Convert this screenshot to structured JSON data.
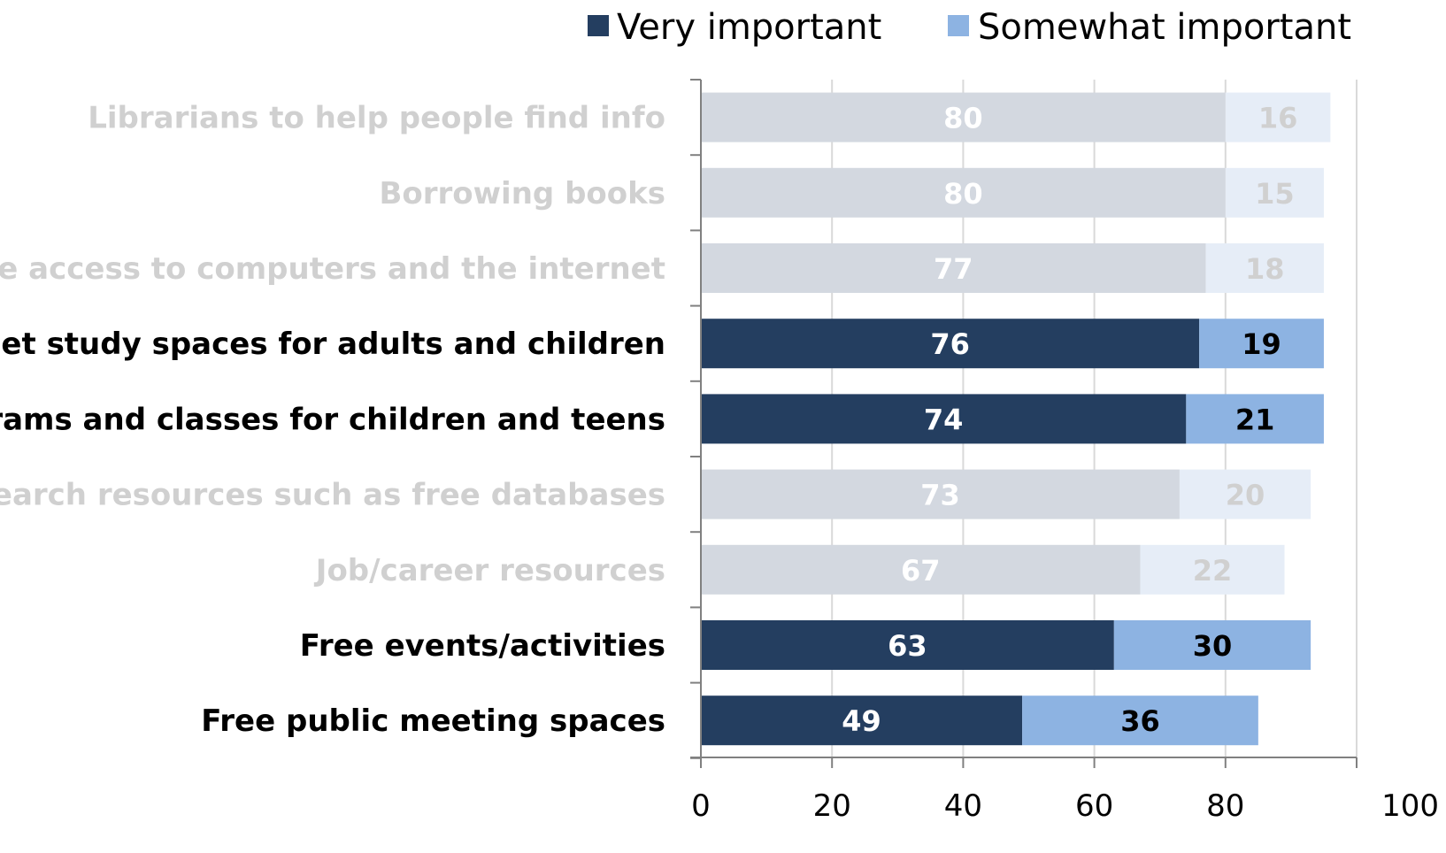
{
  "chart_data": {
    "type": "bar",
    "orientation": "horizontal",
    "stacked": true,
    "title": "",
    "xlabel": "",
    "ylabel": "",
    "xlim": [
      0,
      100
    ],
    "x_ticks": [
      0,
      20,
      40,
      60,
      80,
      100
    ],
    "grid": true,
    "legend_position": "top-right",
    "categories": [
      "Librarians to help people find info",
      "Borrowing books",
      "Free access to computers and the internet",
      "Quiet study spaces for adults and children",
      "Programs and classes for children and teens",
      "Research resources such as free databases",
      "Job/career resources",
      "Free events/activities",
      "Free public meeting spaces"
    ],
    "highlighted": [
      false,
      false,
      false,
      true,
      true,
      false,
      false,
      true,
      true
    ],
    "series": [
      {
        "name": "Very important",
        "values": [
          80,
          80,
          77,
          76,
          74,
          73,
          67,
          63,
          49
        ],
        "color": "#243E60",
        "muted_color": "#D3D8E0"
      },
      {
        "name": "Somewhat important",
        "values": [
          16,
          15,
          18,
          19,
          21,
          20,
          22,
          30,
          36
        ],
        "color": "#8DB3E2",
        "muted_color": "#E6EDF7"
      }
    ],
    "colors": {
      "highlight_text": "#000000",
      "muted_text": "#D0D0D0",
      "very_label_highlight": "#FFFFFF",
      "very_label_muted": "#FFFFFF",
      "somewhat_label_highlight": "#000000",
      "somewhat_label_muted": "#D0D0D0",
      "axis": "#808080",
      "grid": "#D9D9D9"
    }
  }
}
